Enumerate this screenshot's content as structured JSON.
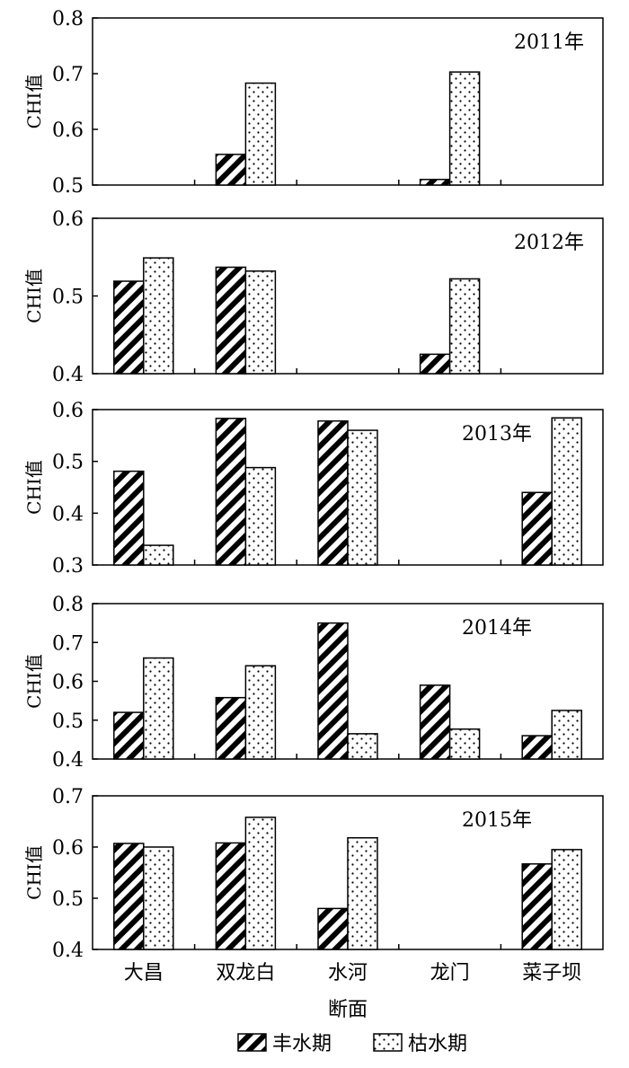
{
  "chart_data": {
    "type": "bar",
    "categories": [
      "大昌",
      "双龙白",
      "水河",
      "龙门",
      "菜子坝"
    ],
    "xlabel": "断面",
    "ylabel": "CHI值",
    "legend": {
      "placement": "bottom",
      "items": [
        {
          "name": "丰水期",
          "pattern": "hatch"
        },
        {
          "name": "枯水期",
          "pattern": "dots"
        }
      ]
    },
    "grid": false,
    "panels": [
      {
        "title": "2011年",
        "ylim": [
          0.5,
          0.8
        ],
        "yticks": [
          "0.5",
          "0.6",
          "0.7",
          "0.8"
        ],
        "series": [
          {
            "name": "丰水期",
            "values": [
              null,
              0.555,
              null,
              0.51,
              null
            ]
          },
          {
            "name": "枯水期",
            "values": [
              null,
              0.683,
              null,
              0.703,
              null
            ]
          }
        ]
      },
      {
        "title": "2012年",
        "ylim": [
          0.4,
          0.6
        ],
        "yticks": [
          "0.4",
          "0.5",
          "0.6"
        ],
        "series": [
          {
            "name": "丰水期",
            "values": [
              0.519,
              0.537,
              null,
              0.425,
              null
            ]
          },
          {
            "name": "枯水期",
            "values": [
              0.549,
              0.532,
              null,
              0.522,
              null
            ]
          }
        ]
      },
      {
        "title": "2013年",
        "ylim": [
          0.3,
          0.6
        ],
        "yticks": [
          "0.3",
          "0.4",
          "0.5",
          "0.6"
        ],
        "series": [
          {
            "name": "丰水期",
            "values": [
              0.481,
              0.583,
              0.578,
              null,
              0.44
            ]
          },
          {
            "name": "枯水期",
            "values": [
              0.338,
              0.488,
              0.56,
              null,
              0.584
            ]
          }
        ]
      },
      {
        "title": "2014年",
        "ylim": [
          0.4,
          0.8
        ],
        "yticks": [
          "0.4",
          "0.5",
          "0.6",
          "0.7",
          "0.8"
        ],
        "series": [
          {
            "name": "丰水期",
            "values": [
              0.52,
              0.558,
              0.75,
              0.59,
              0.46
            ]
          },
          {
            "name": "枯水期",
            "values": [
              0.66,
              0.64,
              0.465,
              0.477,
              0.525
            ]
          }
        ]
      },
      {
        "title": "2015年",
        "ylim": [
          0.4,
          0.7
        ],
        "yticks": [
          "0.4",
          "0.5",
          "0.6",
          "0.7"
        ],
        "series": [
          {
            "name": "丰水期",
            "values": [
              0.607,
              0.608,
              0.48,
              null,
              0.567
            ]
          },
          {
            "name": "枯水期",
            "values": [
              0.6,
              0.658,
              0.618,
              null,
              0.595
            ]
          }
        ]
      }
    ]
  }
}
